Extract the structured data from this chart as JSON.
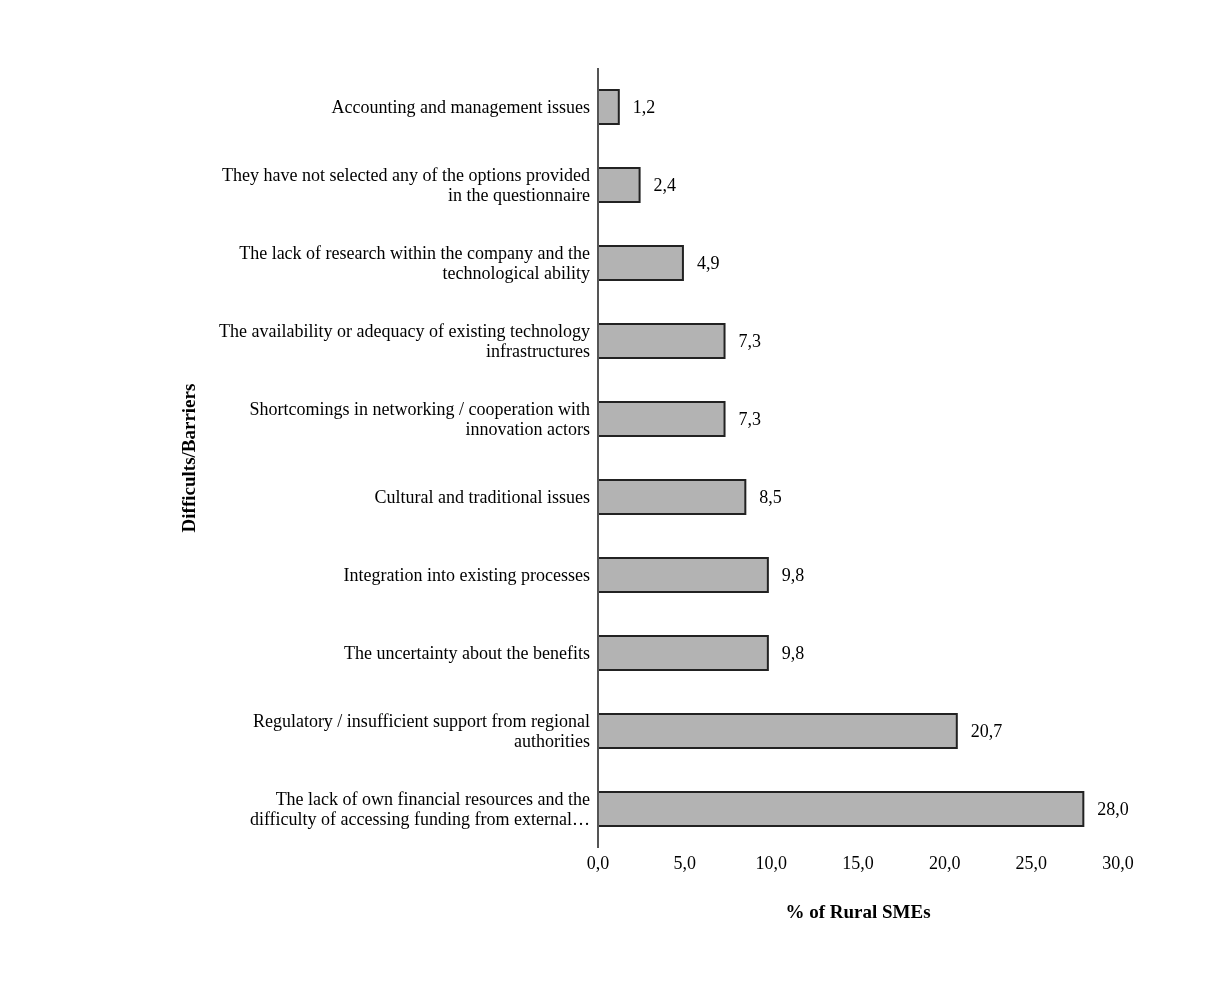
{
  "chart_data": {
    "type": "bar",
    "orientation": "horizontal",
    "ylabel": "Difficults/Barriers",
    "xlabel": "% of Rural  SMEs",
    "categories": [
      "Accounting and management issues",
      "They have not selected any of the options provided in the questionnaire",
      "The lack of research within the company and the technological ability",
      "The availability or adequacy of existing technology infrastructures",
      "Shortcomings in networking / cooperation with innovation actors",
      "Cultural and traditional issues",
      "Integration into existing processes",
      "The uncertainty about the benefits",
      "Regulatory / insufficient support from regional authorities",
      "The lack of own financial resources and the difficulty of accessing funding from external…"
    ],
    "values": [
      1.2,
      2.4,
      4.9,
      7.3,
      7.3,
      8.5,
      9.8,
      9.8,
      20.7,
      28.0
    ],
    "value_labels": [
      "1,2",
      "2,4",
      "4,9",
      "7,3",
      "7,3",
      "8,5",
      "9,8",
      "9,8",
      "20,7",
      "28,0"
    ],
    "color": "#b3b3b3",
    "xlim": [
      0,
      30
    ],
    "xticks": [
      {
        "value": 0,
        "label": "0,0"
      },
      {
        "value": 5,
        "label": "5,0"
      },
      {
        "value": 10,
        "label": "10,0"
      },
      {
        "value": 15,
        "label": "15,0"
      },
      {
        "value": 20,
        "label": "20,0"
      },
      {
        "value": 25,
        "label": "25,0"
      },
      {
        "value": 30,
        "label": "30,0"
      }
    ],
    "grid": false,
    "legend": false
  }
}
